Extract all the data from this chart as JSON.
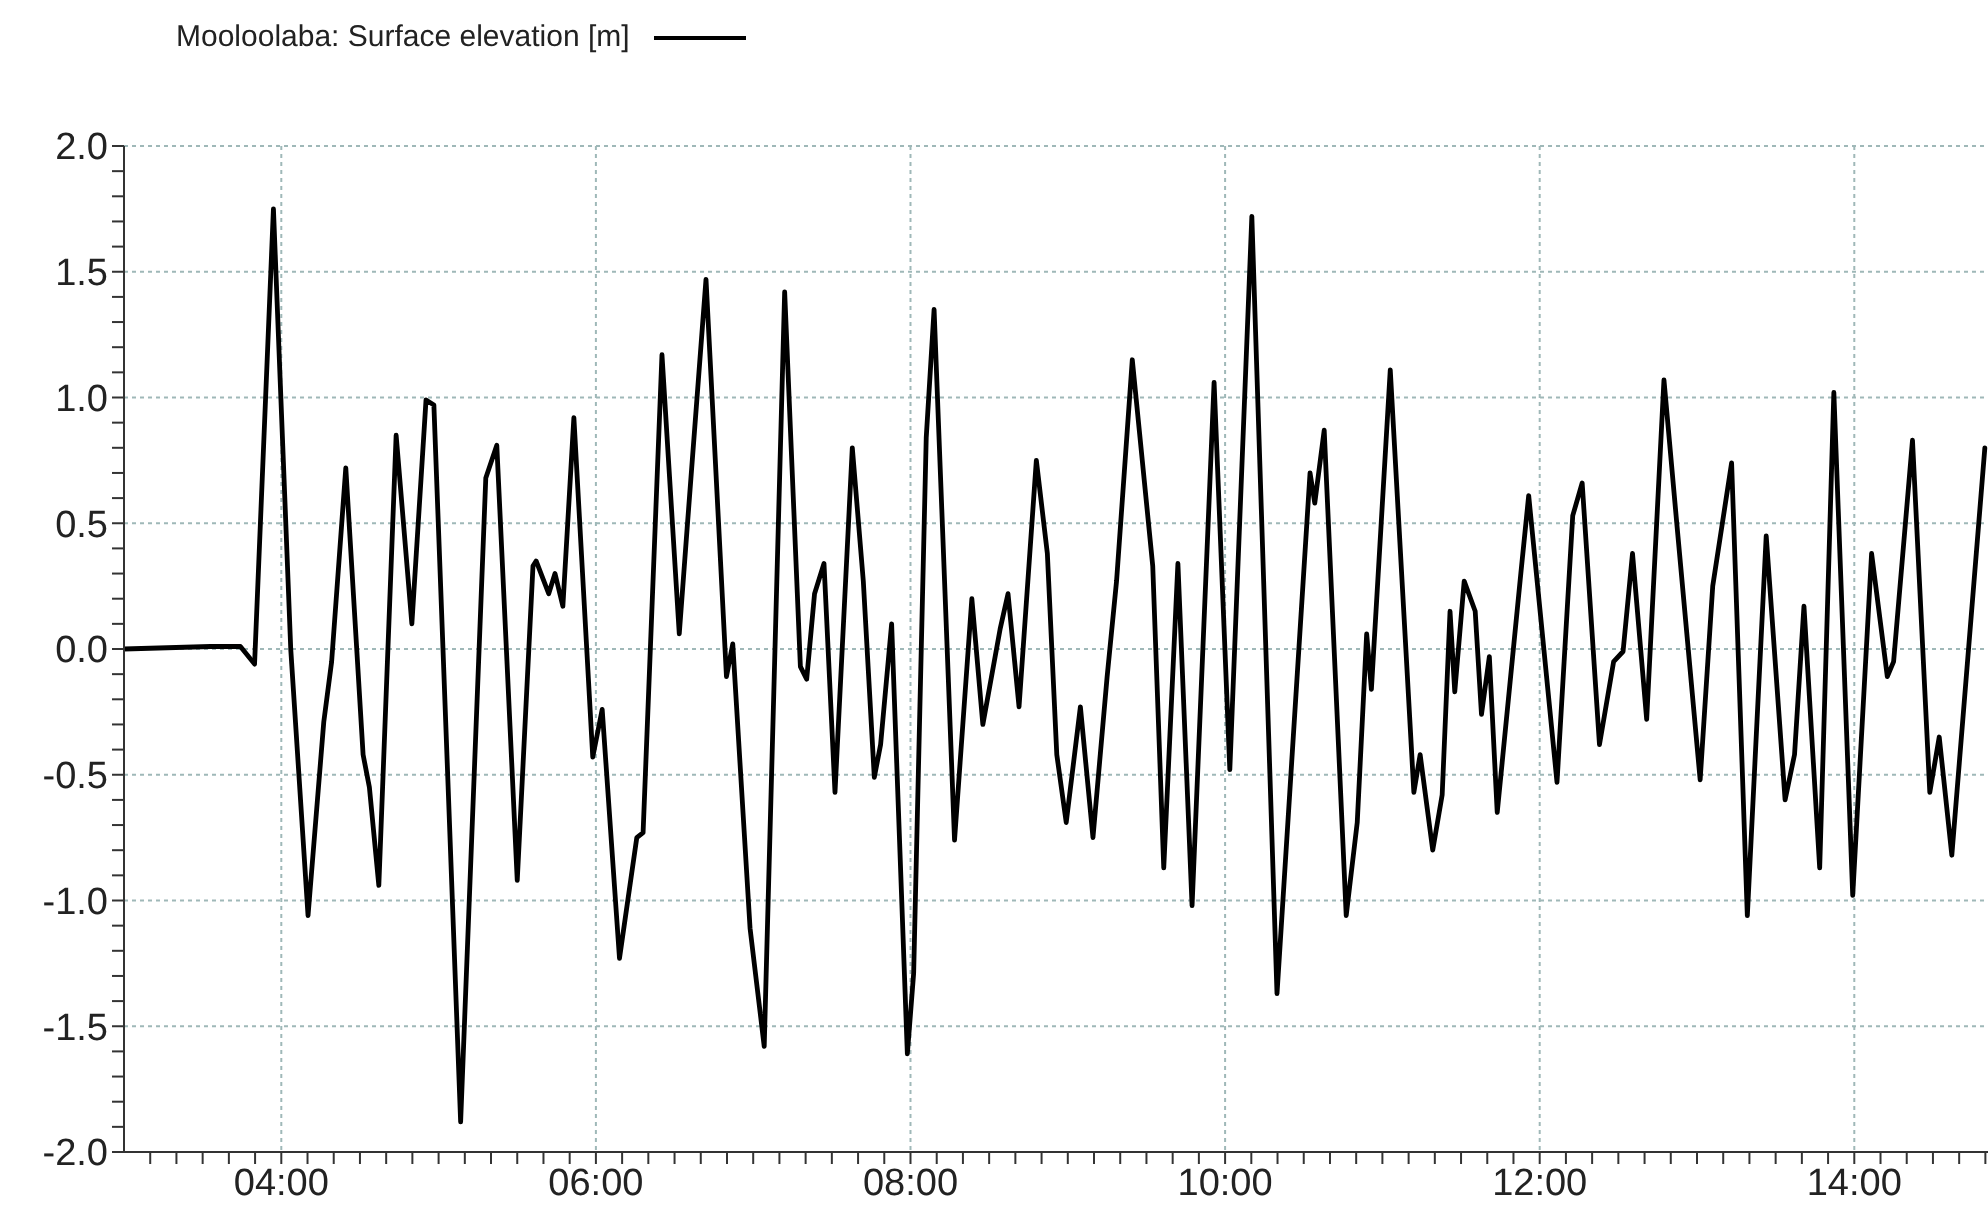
{
  "chart_data": {
    "type": "line",
    "legend": "top left",
    "grid": true,
    "marker": "none",
    "line_style": "solid",
    "xlim": [
      3,
      14.85
    ],
    "ylim": [
      -2,
      2
    ],
    "xticks": [
      {
        "value": 3.1667,
        "label": null
      },
      {
        "value": 3.3333,
        "label": null
      },
      {
        "value": 3.5,
        "label": null
      },
      {
        "value": 3.6667,
        "label": null
      },
      {
        "value": 3.8333,
        "label": null
      },
      {
        "value": 4,
        "label": "04:00"
      },
      {
        "value": 4.1667,
        "label": null
      },
      {
        "value": 4.3333,
        "label": null
      },
      {
        "value": 4.5,
        "label": null
      },
      {
        "value": 4.6667,
        "label": null
      },
      {
        "value": 4.8333,
        "label": null
      },
      {
        "value": 5,
        "label": null
      },
      {
        "value": 5.1667,
        "label": null
      },
      {
        "value": 5.3333,
        "label": null
      },
      {
        "value": 5.5,
        "label": null
      },
      {
        "value": 5.6667,
        "label": null
      },
      {
        "value": 5.8333,
        "label": null
      },
      {
        "value": 6,
        "label": "06:00"
      },
      {
        "value": 6.1667,
        "label": null
      },
      {
        "value": 6.3333,
        "label": null
      },
      {
        "value": 6.5,
        "label": null
      },
      {
        "value": 6.6667,
        "label": null
      },
      {
        "value": 6.8333,
        "label": null
      },
      {
        "value": 7,
        "label": null
      },
      {
        "value": 7.1667,
        "label": null
      },
      {
        "value": 7.3333,
        "label": null
      },
      {
        "value": 7.5,
        "label": null
      },
      {
        "value": 7.6667,
        "label": null
      },
      {
        "value": 7.8333,
        "label": null
      },
      {
        "value": 8,
        "label": "08:00"
      },
      {
        "value": 8.1667,
        "label": null
      },
      {
        "value": 8.3333,
        "label": null
      },
      {
        "value": 8.5,
        "label": null
      },
      {
        "value": 8.6667,
        "label": null
      },
      {
        "value": 8.8333,
        "label": null
      },
      {
        "value": 9,
        "label": null
      },
      {
        "value": 9.1667,
        "label": null
      },
      {
        "value": 9.3333,
        "label": null
      },
      {
        "value": 9.5,
        "label": null
      },
      {
        "value": 9.6667,
        "label": null
      },
      {
        "value": 9.8333,
        "label": null
      },
      {
        "value": 10,
        "label": "10:00"
      },
      {
        "value": 10.1667,
        "label": null
      },
      {
        "value": 10.3333,
        "label": null
      },
      {
        "value": 10.5,
        "label": null
      },
      {
        "value": 10.6667,
        "label": null
      },
      {
        "value": 10.8333,
        "label": null
      },
      {
        "value": 11,
        "label": null
      },
      {
        "value": 11.1667,
        "label": null
      },
      {
        "value": 11.3333,
        "label": null
      },
      {
        "value": 11.5,
        "label": null
      },
      {
        "value": 11.6667,
        "label": null
      },
      {
        "value": 11.8333,
        "label": null
      },
      {
        "value": 12,
        "label": "12:00"
      },
      {
        "value": 12.1667,
        "label": null
      },
      {
        "value": 12.3333,
        "label": null
      },
      {
        "value": 12.5,
        "label": null
      },
      {
        "value": 12.6667,
        "label": null
      },
      {
        "value": 12.8333,
        "label": null
      },
      {
        "value": 13,
        "label": null
      },
      {
        "value": 13.1667,
        "label": null
      },
      {
        "value": 13.3333,
        "label": null
      },
      {
        "value": 13.5,
        "label": null
      },
      {
        "value": 13.6667,
        "label": null
      },
      {
        "value": 13.8333,
        "label": null
      },
      {
        "value": 14,
        "label": "14:00"
      },
      {
        "value": 14.1667,
        "label": null
      },
      {
        "value": 14.3333,
        "label": null
      },
      {
        "value": 14.5,
        "label": null
      },
      {
        "value": 14.6667,
        "label": null
      },
      {
        "value": 14.8333,
        "label": null
      }
    ],
    "yticks": [
      {
        "value": -2,
        "label": "-2.0"
      },
      {
        "value": -1.9,
        "label": null
      },
      {
        "value": -1.8,
        "label": null
      },
      {
        "value": -1.7,
        "label": null
      },
      {
        "value": -1.6,
        "label": null
      },
      {
        "value": -1.5,
        "label": "-1.5"
      },
      {
        "value": -1.4,
        "label": null
      },
      {
        "value": -1.3,
        "label": null
      },
      {
        "value": -1.2,
        "label": null
      },
      {
        "value": -1.1,
        "label": null
      },
      {
        "value": -1,
        "label": "-1.0"
      },
      {
        "value": -0.9,
        "label": null
      },
      {
        "value": -0.8,
        "label": null
      },
      {
        "value": -0.7,
        "label": null
      },
      {
        "value": -0.6,
        "label": null
      },
      {
        "value": -0.5,
        "label": "-0.5"
      },
      {
        "value": -0.4,
        "label": null
      },
      {
        "value": -0.3,
        "label": null
      },
      {
        "value": -0.2,
        "label": null
      },
      {
        "value": -0.1,
        "label": null
      },
      {
        "value": 0,
        "label": "0.0"
      },
      {
        "value": 0.1,
        "label": null
      },
      {
        "value": 0.2,
        "label": null
      },
      {
        "value": 0.3,
        "label": null
      },
      {
        "value": 0.4,
        "label": null
      },
      {
        "value": 0.5,
        "label": "0.5"
      },
      {
        "value": 0.6,
        "label": null
      },
      {
        "value": 0.7,
        "label": null
      },
      {
        "value": 0.8,
        "label": null
      },
      {
        "value": 0.9,
        "label": null
      },
      {
        "value": 1,
        "label": "1.0"
      },
      {
        "value": 1.1,
        "label": null
      },
      {
        "value": 1.2,
        "label": null
      },
      {
        "value": 1.3,
        "label": null
      },
      {
        "value": 1.4,
        "label": null
      },
      {
        "value": 1.5,
        "label": "1.5"
      },
      {
        "value": 1.6,
        "label": null
      },
      {
        "value": 1.7,
        "label": null
      },
      {
        "value": 1.8,
        "label": null
      },
      {
        "value": 1.9,
        "label": null
      },
      {
        "value": 2,
        "label": "2.0"
      }
    ],
    "series": [
      {
        "name": "Mooloolaba: Surface elevation [m]",
        "color": "#000000",
        "x": [
          3.0,
          3.55,
          3.74,
          3.83,
          3.95,
          4.06,
          4.17,
          4.27,
          4.32,
          4.41,
          4.52,
          4.56,
          4.62,
          4.73,
          4.83,
          4.92,
          4.97,
          5.14,
          5.3,
          5.37,
          5.5,
          5.6,
          5.62,
          5.7,
          5.74,
          5.79,
          5.86,
          5.98,
          6.04,
          6.15,
          6.26,
          6.3,
          6.42,
          6.53,
          6.58,
          6.7,
          6.83,
          6.87,
          6.98,
          7.07,
          7.2,
          7.3,
          7.34,
          7.39,
          7.45,
          7.52,
          7.63,
          7.7,
          7.77,
          7.81,
          7.88,
          7.98,
          8.02,
          8.1,
          8.15,
          8.28,
          8.39,
          8.46,
          8.57,
          8.62,
          8.69,
          8.8,
          8.87,
          8.93,
          8.99,
          9.08,
          9.16,
          9.25,
          9.31,
          9.41,
          9.54,
          9.61,
          9.7,
          9.79,
          9.93,
          10.03,
          10.17,
          10.33,
          10.54,
          10.57,
          10.63,
          10.77,
          10.84,
          10.9,
          10.93,
          11.05,
          11.2,
          11.24,
          11.32,
          11.38,
          11.43,
          11.46,
          11.52,
          11.59,
          11.63,
          11.68,
          11.73,
          11.88,
          11.93,
          12.11,
          12.21,
          12.27,
          12.38,
          12.47,
          12.53,
          12.59,
          12.68,
          12.79,
          12.87,
          13.02,
          13.1,
          13.22,
          13.32,
          13.44,
          13.56,
          13.62,
          13.68,
          13.78,
          13.87,
          13.99,
          14.11,
          14.21,
          14.25,
          14.37,
          14.48,
          14.54,
          14.62,
          14.83
        ],
        "values": [
          0,
          0.01,
          0.01,
          -0.06,
          1.75,
          0,
          -1.06,
          -0.29,
          -0.05,
          0.72,
          -0.42,
          -0.55,
          -0.94,
          0.85,
          0.1,
          0.99,
          0.97,
          -1.88,
          0.68,
          0.81,
          -0.92,
          0.33,
          0.35,
          0.22,
          0.3,
          0.17,
          0.92,
          -0.43,
          -0.24,
          -1.23,
          -0.75,
          -0.73,
          1.17,
          0.06,
          0.48,
          1.47,
          -0.11,
          0.02,
          -1.11,
          -1.58,
          1.42,
          -0.07,
          -0.12,
          0.22,
          0.34,
          -0.57,
          0.8,
          0.27,
          -0.51,
          -0.38,
          0.1,
          -1.61,
          -1.29,
          0.84,
          1.35,
          -0.76,
          0.2,
          -0.3,
          0.08,
          0.22,
          -0.23,
          0.75,
          0.38,
          -0.42,
          -0.69,
          -0.23,
          -0.75,
          -0.11,
          0.27,
          1.15,
          0.33,
          -0.87,
          0.34,
          -1.02,
          1.06,
          -0.48,
          1.72,
          -1.37,
          0.7,
          0.58,
          0.87,
          -1.06,
          -0.69,
          0.06,
          -0.16,
          1.11,
          -0.57,
          -0.42,
          -0.8,
          -0.58,
          0.15,
          -0.17,
          0.27,
          0.15,
          -0.26,
          -0.03,
          -0.65,
          0.3,
          0.61,
          -0.53,
          0.53,
          0.66,
          -0.38,
          -0.05,
          -0.01,
          0.38,
          -0.28,
          1.07,
          0.51,
          -0.52,
          0.25,
          0.74,
          -1.06,
          0.45,
          -0.6,
          -0.42,
          0.17,
          -0.87,
          1.02,
          -0.98,
          0.38,
          -0.11,
          -0.05,
          0.83,
          -0.57,
          -0.35,
          -0.82,
          0.8
        ]
      }
    ]
  }
}
